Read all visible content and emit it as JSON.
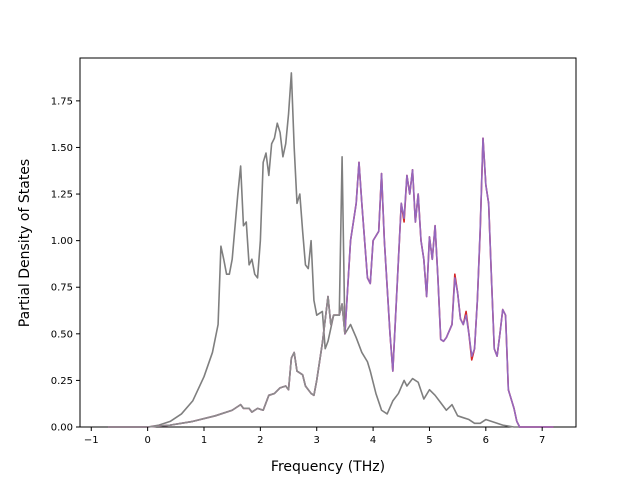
{
  "chart_data": {
    "type": "line",
    "title": "",
    "xlabel": "Frequency (THz)",
    "ylabel": "Partial Density of States",
    "xlim": [
      -1.2,
      7.6
    ],
    "ylim": [
      0,
      1.98
    ],
    "xticks": [
      -1,
      0,
      1,
      2,
      3,
      4,
      5,
      6,
      7
    ],
    "xtick_labels": [
      "−1",
      "0",
      "1",
      "2",
      "3",
      "4",
      "5",
      "6",
      "7"
    ],
    "yticks": [
      0,
      0.25,
      0.5,
      0.75,
      1.0,
      1.25,
      1.5,
      1.75
    ],
    "ytick_labels": [
      "0.00",
      "0.25",
      "0.50",
      "0.75",
      "1.00",
      "1.25",
      "1.50",
      "1.75"
    ],
    "grid": false,
    "series": [
      {
        "color": "#7f7f7f",
        "points": [
          [
            -0.7,
            0
          ],
          [
            0,
            0.0
          ],
          [
            0.2,
            0.01
          ],
          [
            0.4,
            0.03
          ],
          [
            0.6,
            0.07
          ],
          [
            0.8,
            0.14
          ],
          [
            1.0,
            0.27
          ],
          [
            1.15,
            0.4
          ],
          [
            1.25,
            0.55
          ],
          [
            1.3,
            0.97
          ],
          [
            1.35,
            0.9
          ],
          [
            1.4,
            0.82
          ],
          [
            1.45,
            0.82
          ],
          [
            1.5,
            0.9
          ],
          [
            1.6,
            1.25
          ],
          [
            1.65,
            1.4
          ],
          [
            1.7,
            1.08
          ],
          [
            1.75,
            1.1
          ],
          [
            1.8,
            0.87
          ],
          [
            1.85,
            0.9
          ],
          [
            1.9,
            0.82
          ],
          [
            1.95,
            0.8
          ],
          [
            2.0,
            1.0
          ],
          [
            2.05,
            1.42
          ],
          [
            2.1,
            1.47
          ],
          [
            2.15,
            1.35
          ],
          [
            2.2,
            1.52
          ],
          [
            2.25,
            1.55
          ],
          [
            2.3,
            1.63
          ],
          [
            2.35,
            1.58
          ],
          [
            2.4,
            1.45
          ],
          [
            2.45,
            1.52
          ],
          [
            2.5,
            1.68
          ],
          [
            2.55,
            1.9
          ],
          [
            2.6,
            1.5
          ],
          [
            2.65,
            1.2
          ],
          [
            2.7,
            1.25
          ],
          [
            2.75,
            1.05
          ],
          [
            2.8,
            0.87
          ],
          [
            2.85,
            0.85
          ],
          [
            2.9,
            1.0
          ],
          [
            2.95,
            0.68
          ],
          [
            3.0,
            0.6
          ],
          [
            3.1,
            0.62
          ],
          [
            3.15,
            0.42
          ],
          [
            3.2,
            0.46
          ],
          [
            3.3,
            0.6
          ],
          [
            3.4,
            0.6
          ],
          [
            3.45,
            1.45
          ],
          [
            3.5,
            0.5
          ],
          [
            3.6,
            0.55
          ],
          [
            3.7,
            0.48
          ],
          [
            3.8,
            0.4
          ],
          [
            3.9,
            0.35
          ],
          [
            3.95,
            0.3
          ],
          [
            4.05,
            0.18
          ],
          [
            4.15,
            0.09
          ],
          [
            4.25,
            0.07
          ],
          [
            4.35,
            0.14
          ],
          [
            4.45,
            0.18
          ],
          [
            4.55,
            0.25
          ],
          [
            4.6,
            0.22
          ],
          [
            4.7,
            0.26
          ],
          [
            4.8,
            0.24
          ],
          [
            4.9,
            0.15
          ],
          [
            5.0,
            0.2
          ],
          [
            5.1,
            0.17
          ],
          [
            5.2,
            0.13
          ],
          [
            5.3,
            0.09
          ],
          [
            5.4,
            0.12
          ],
          [
            5.5,
            0.06
          ],
          [
            5.6,
            0.05
          ],
          [
            5.7,
            0.04
          ],
          [
            5.8,
            0.02
          ],
          [
            5.9,
            0.02
          ],
          [
            6.0,
            0.04
          ],
          [
            6.1,
            0.03
          ],
          [
            6.3,
            0.01
          ],
          [
            6.5,
            0
          ],
          [
            7.2,
            0
          ]
        ]
      },
      {
        "color": "#d62728",
        "points": [
          [
            -0.7,
            0
          ],
          [
            0,
            0.0
          ],
          [
            0.4,
            0.01
          ],
          [
            0.8,
            0.03
          ],
          [
            1.2,
            0.06
          ],
          [
            1.5,
            0.09
          ],
          [
            1.65,
            0.12
          ],
          [
            1.7,
            0.1
          ],
          [
            1.8,
            0.1
          ],
          [
            1.85,
            0.08
          ],
          [
            1.95,
            0.1
          ],
          [
            2.05,
            0.09
          ],
          [
            2.15,
            0.17
          ],
          [
            2.25,
            0.18
          ],
          [
            2.35,
            0.21
          ],
          [
            2.45,
            0.22
          ],
          [
            2.5,
            0.2
          ],
          [
            2.55,
            0.37
          ],
          [
            2.6,
            0.4
          ],
          [
            2.65,
            0.3
          ],
          [
            2.75,
            0.28
          ],
          [
            2.8,
            0.22
          ],
          [
            2.9,
            0.18
          ],
          [
            2.95,
            0.17
          ],
          [
            3.0,
            0.25
          ],
          [
            3.1,
            0.45
          ],
          [
            3.2,
            0.7
          ],
          [
            3.25,
            0.55
          ],
          [
            3.3,
            0.6
          ],
          [
            3.4,
            0.6
          ],
          [
            3.45,
            0.66
          ],
          [
            3.5,
            0.5
          ],
          [
            3.6,
            1.0
          ],
          [
            3.7,
            1.2
          ],
          [
            3.75,
            1.42
          ],
          [
            3.8,
            1.2
          ],
          [
            3.9,
            0.8
          ],
          [
            3.95,
            0.77
          ],
          [
            4.0,
            1.0
          ],
          [
            4.1,
            1.05
          ],
          [
            4.15,
            1.36
          ],
          [
            4.2,
            1.0
          ],
          [
            4.3,
            0.5
          ],
          [
            4.35,
            0.3
          ],
          [
            4.4,
            0.6
          ],
          [
            4.5,
            1.2
          ],
          [
            4.55,
            1.1
          ],
          [
            4.6,
            1.35
          ],
          [
            4.65,
            1.25
          ],
          [
            4.7,
            1.38
          ],
          [
            4.75,
            1.1
          ],
          [
            4.8,
            1.25
          ],
          [
            4.85,
            1.0
          ],
          [
            4.9,
            0.9
          ],
          [
            4.95,
            0.7
          ],
          [
            5.0,
            1.02
          ],
          [
            5.05,
            0.9
          ],
          [
            5.1,
            1.08
          ],
          [
            5.15,
            0.8
          ],
          [
            5.2,
            0.47
          ],
          [
            5.25,
            0.46
          ],
          [
            5.3,
            0.48
          ],
          [
            5.4,
            0.55
          ],
          [
            5.45,
            0.82
          ],
          [
            5.5,
            0.72
          ],
          [
            5.55,
            0.58
          ],
          [
            5.6,
            0.55
          ],
          [
            5.65,
            0.62
          ],
          [
            5.7,
            0.5
          ],
          [
            5.75,
            0.36
          ],
          [
            5.8,
            0.42
          ],
          [
            5.85,
            0.68
          ],
          [
            5.9,
            1.05
          ],
          [
            5.95,
            1.55
          ],
          [
            6.0,
            1.3
          ],
          [
            6.05,
            1.2
          ],
          [
            6.1,
            0.8
          ],
          [
            6.15,
            0.42
          ],
          [
            6.2,
            0.38
          ],
          [
            6.25,
            0.5
          ],
          [
            6.3,
            0.63
          ],
          [
            6.35,
            0.6
          ],
          [
            6.4,
            0.2
          ],
          [
            6.5,
            0.1
          ],
          [
            6.55,
            0.03
          ],
          [
            6.6,
            0
          ],
          [
            7.2,
            0
          ]
        ]
      },
      {
        "color": "#9467bd",
        "points": [
          [
            -0.7,
            0
          ],
          [
            0,
            0.0
          ],
          [
            0.4,
            0.01
          ],
          [
            0.8,
            0.03
          ],
          [
            1.2,
            0.06
          ],
          [
            1.5,
            0.09
          ],
          [
            1.65,
            0.12
          ],
          [
            1.7,
            0.1
          ],
          [
            1.8,
            0.1
          ],
          [
            1.85,
            0.08
          ],
          [
            1.95,
            0.1
          ],
          [
            2.05,
            0.09
          ],
          [
            2.15,
            0.17
          ],
          [
            2.25,
            0.18
          ],
          [
            2.35,
            0.21
          ],
          [
            2.45,
            0.22
          ],
          [
            2.5,
            0.2
          ],
          [
            2.55,
            0.37
          ],
          [
            2.6,
            0.4
          ],
          [
            2.65,
            0.3
          ],
          [
            2.75,
            0.28
          ],
          [
            2.8,
            0.22
          ],
          [
            2.9,
            0.18
          ],
          [
            2.95,
            0.17
          ],
          [
            3.0,
            0.25
          ],
          [
            3.1,
            0.45
          ],
          [
            3.2,
            0.7
          ],
          [
            3.25,
            0.55
          ],
          [
            3.3,
            0.6
          ],
          [
            3.4,
            0.6
          ],
          [
            3.45,
            0.66
          ],
          [
            3.5,
            0.5
          ],
          [
            3.6,
            1.0
          ],
          [
            3.7,
            1.2
          ],
          [
            3.75,
            1.42
          ],
          [
            3.8,
            1.2
          ],
          [
            3.9,
            0.8
          ],
          [
            3.95,
            0.77
          ],
          [
            4.0,
            1.0
          ],
          [
            4.1,
            1.05
          ],
          [
            4.15,
            1.36
          ],
          [
            4.2,
            1.0
          ],
          [
            4.3,
            0.5
          ],
          [
            4.35,
            0.3
          ],
          [
            4.4,
            0.6
          ],
          [
            4.5,
            1.2
          ],
          [
            4.55,
            1.12
          ],
          [
            4.6,
            1.35
          ],
          [
            4.65,
            1.25
          ],
          [
            4.7,
            1.38
          ],
          [
            4.75,
            1.1
          ],
          [
            4.8,
            1.25
          ],
          [
            4.85,
            1.0
          ],
          [
            4.9,
            0.9
          ],
          [
            4.95,
            0.7
          ],
          [
            5.0,
            1.02
          ],
          [
            5.05,
            0.9
          ],
          [
            5.1,
            1.08
          ],
          [
            5.15,
            0.8
          ],
          [
            5.2,
            0.47
          ],
          [
            5.25,
            0.46
          ],
          [
            5.3,
            0.48
          ],
          [
            5.4,
            0.55
          ],
          [
            5.45,
            0.8
          ],
          [
            5.5,
            0.72
          ],
          [
            5.55,
            0.58
          ],
          [
            5.6,
            0.55
          ],
          [
            5.65,
            0.6
          ],
          [
            5.7,
            0.5
          ],
          [
            5.75,
            0.38
          ],
          [
            5.8,
            0.42
          ],
          [
            5.85,
            0.68
          ],
          [
            5.9,
            1.06
          ],
          [
            5.95,
            1.55
          ],
          [
            6.0,
            1.3
          ],
          [
            6.05,
            1.2
          ],
          [
            6.1,
            0.8
          ],
          [
            6.15,
            0.42
          ],
          [
            6.2,
            0.38
          ],
          [
            6.25,
            0.5
          ],
          [
            6.3,
            0.63
          ],
          [
            6.35,
            0.6
          ],
          [
            6.4,
            0.2
          ],
          [
            6.5,
            0.1
          ],
          [
            6.55,
            0.03
          ],
          [
            6.6,
            0
          ],
          [
            7.2,
            0
          ]
        ]
      },
      {
        "color": "#8c8c8c",
        "points": [
          [
            -0.7,
            0
          ],
          [
            0,
            0.0
          ],
          [
            0.4,
            0.01
          ],
          [
            0.8,
            0.03
          ],
          [
            1.2,
            0.06
          ],
          [
            1.5,
            0.09
          ],
          [
            1.65,
            0.12
          ],
          [
            1.7,
            0.1
          ],
          [
            1.8,
            0.1
          ],
          [
            1.85,
            0.08
          ],
          [
            1.95,
            0.1
          ],
          [
            2.05,
            0.09
          ],
          [
            2.15,
            0.17
          ],
          [
            2.25,
            0.18
          ],
          [
            2.35,
            0.21
          ],
          [
            2.45,
            0.22
          ],
          [
            2.5,
            0.2
          ],
          [
            2.55,
            0.37
          ],
          [
            2.6,
            0.4
          ],
          [
            2.65,
            0.3
          ],
          [
            2.75,
            0.28
          ],
          [
            2.8,
            0.22
          ],
          [
            2.9,
            0.18
          ],
          [
            2.95,
            0.17
          ],
          [
            3.0,
            0.25
          ],
          [
            3.1,
            0.45
          ],
          [
            3.2,
            0.7
          ],
          [
            3.25,
            0.55
          ],
          [
            3.3,
            0.6
          ],
          [
            3.4,
            0.6
          ],
          [
            3.45,
            0.66
          ],
          [
            3.5,
            0.5
          ]
        ]
      }
    ]
  }
}
